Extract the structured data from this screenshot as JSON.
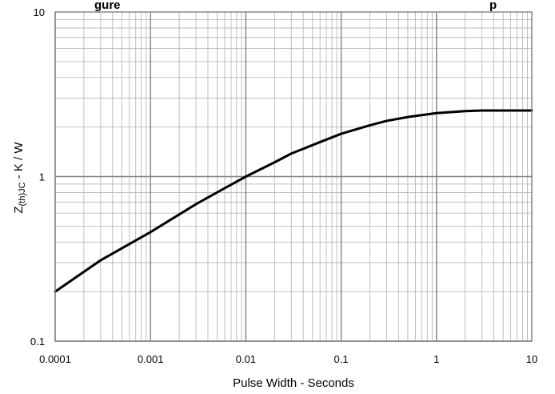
{
  "chart_data": {
    "type": "line",
    "title_visible_fragment": "...gure ... ...p",
    "xlabel": "Pulse Width - Seconds",
    "ylabel_main": "Z",
    "ylabel_sub": "(th)JC",
    "ylabel_rest": " - K / W",
    "x_scale": "log",
    "y_scale": "log",
    "xlim": [
      0.0001,
      10
    ],
    "ylim": [
      0.1,
      10
    ],
    "x_ticks": [
      "0.0001",
      "0.001",
      "0.01",
      "0.1",
      "1",
      "10"
    ],
    "y_ticks": [
      "0.1",
      "1",
      "10"
    ],
    "grid": true,
    "legend": "none",
    "series": [
      {
        "color": "#000000",
        "x": [
          0.0001,
          0.0003,
          0.001,
          0.003,
          0.006,
          0.01,
          0.02,
          0.03,
          0.06,
          0.1,
          0.2,
          0.3,
          0.5,
          1,
          2,
          3,
          5,
          10
        ],
        "y": [
          0.2,
          0.31,
          0.46,
          0.68,
          0.85,
          1.0,
          1.22,
          1.38,
          1.62,
          1.82,
          2.05,
          2.18,
          2.3,
          2.43,
          2.5,
          2.52,
          2.52,
          2.52
        ]
      }
    ]
  }
}
